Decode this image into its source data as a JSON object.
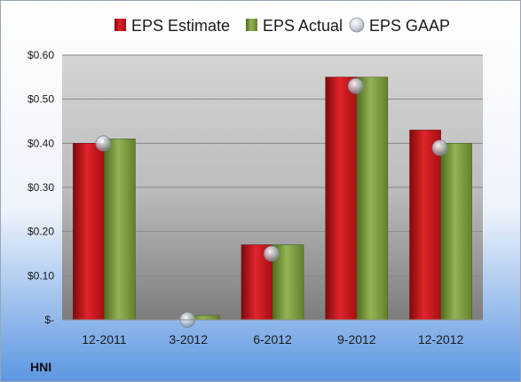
{
  "ticker": "HNI",
  "colors": {
    "estimate": "#c8141c",
    "actual": "#7a9a3a",
    "gaap": "#b4bcc8",
    "background_top": "#ffffff",
    "background_bottom": "#5b97e2"
  },
  "chart_data": {
    "type": "bar",
    "title": "",
    "xlabel": "",
    "ylabel": "",
    "categories": [
      "12-2011",
      "3-2012",
      "6-2012",
      "9-2012",
      "12-2012"
    ],
    "series": [
      {
        "name": "EPS Estimate",
        "kind": "bar",
        "values": [
          0.4,
          null,
          0.17,
          0.55,
          0.43
        ]
      },
      {
        "name": "EPS Actual",
        "kind": "bar",
        "values": [
          0.41,
          0.01,
          0.17,
          0.55,
          0.4
        ]
      },
      {
        "name": "EPS GAAP",
        "kind": "marker",
        "values": [
          0.4,
          0.0,
          0.15,
          0.53,
          0.39
        ]
      }
    ],
    "ylim": [
      0,
      0.6
    ],
    "yticks": [
      0,
      0.1,
      0.2,
      0.3,
      0.4,
      0.5,
      0.6
    ],
    "ytick_labels": [
      "$-",
      "$0.10",
      "$0.20",
      "$0.30",
      "$0.40",
      "$0.50",
      "$0.60"
    ],
    "grid": true,
    "legend": "top"
  }
}
